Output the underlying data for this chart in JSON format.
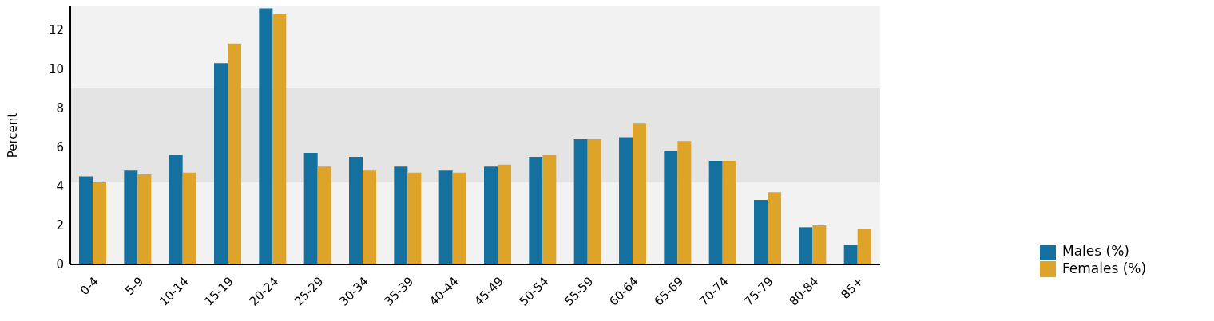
{
  "chart_data": {
    "type": "bar",
    "ylabel": "Percent",
    "categories": [
      "0-4",
      "5-9",
      "10-14",
      "15-19",
      "20-24",
      "25-29",
      "30-34",
      "35-39",
      "40-44",
      "45-49",
      "50-54",
      "55-59",
      "60-64",
      "65-69",
      "70-74",
      "75-79",
      "80-84",
      "85+"
    ],
    "series": [
      {
        "name": "Males (%)",
        "color": "#14719f",
        "values": [
          4.5,
          4.8,
          5.6,
          10.3,
          13.1,
          5.7,
          5.5,
          5.0,
          4.8,
          5.0,
          5.5,
          6.4,
          6.5,
          5.8,
          5.3,
          3.3,
          1.9,
          1.0
        ]
      },
      {
        "name": "Females (%)",
        "color": "#dea42a",
        "values": [
          4.2,
          4.6,
          4.7,
          11.3,
          12.8,
          5.0,
          4.8,
          4.7,
          4.7,
          5.1,
          5.6,
          6.4,
          7.2,
          6.3,
          5.3,
          3.7,
          2.0,
          1.8
        ]
      }
    ],
    "ylim": [
      0,
      13.2
    ],
    "yticks": [
      0,
      2,
      4,
      6,
      8,
      10,
      12
    ],
    "bands": [
      {
        "axis": "y",
        "from": 4.2,
        "to": 9.0,
        "color": "#e4e4e4"
      }
    ],
    "grid": false,
    "legend": "right"
  }
}
